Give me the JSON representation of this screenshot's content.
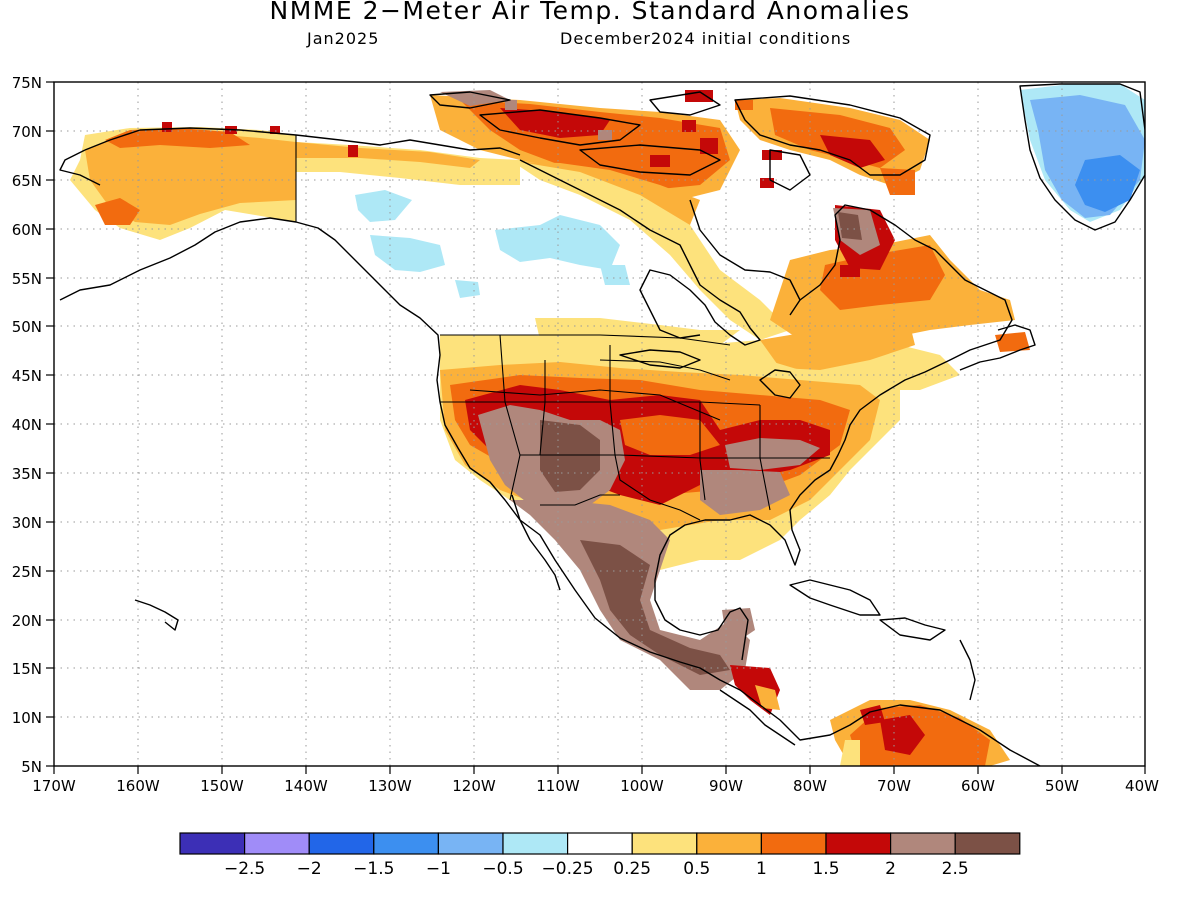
{
  "title": "NMME 2−Meter Air Temp. Standard Anomalies",
  "subtitle_left": "Jan2025",
  "subtitle_right": "December2024 initial conditions",
  "lat_labels": [
    "75N",
    "70N",
    "65N",
    "60N",
    "55N",
    "50N",
    "45N",
    "40N",
    "35N",
    "30N",
    "25N",
    "20N",
    "15N",
    "10N",
    "5N"
  ],
  "lon_labels": [
    "170W",
    "160W",
    "150W",
    "140W",
    "130W",
    "120W",
    "110W",
    "100W",
    "90W",
    "80W",
    "70W",
    "60W",
    "50W",
    "40W"
  ],
  "colorbar": {
    "colors": [
      "#3c2fb6",
      "#a08cf8",
      "#2266e8",
      "#3c8ff0",
      "#78b4f4",
      "#aee8f6",
      "#ffffff",
      "#fde27c",
      "#fbb13a",
      "#f26b0f",
      "#c40808",
      "#b0877c",
      "#7c5146"
    ],
    "labels": [
      "−2.5",
      "−2",
      "−1.5",
      "−1",
      "−0.5",
      "−0.25",
      "0.25",
      "0.5",
      "1",
      "1.5",
      "2",
      "2.5"
    ]
  },
  "colors": {
    "land_outline": "#000000",
    "grid": "#9a9a9a"
  }
}
